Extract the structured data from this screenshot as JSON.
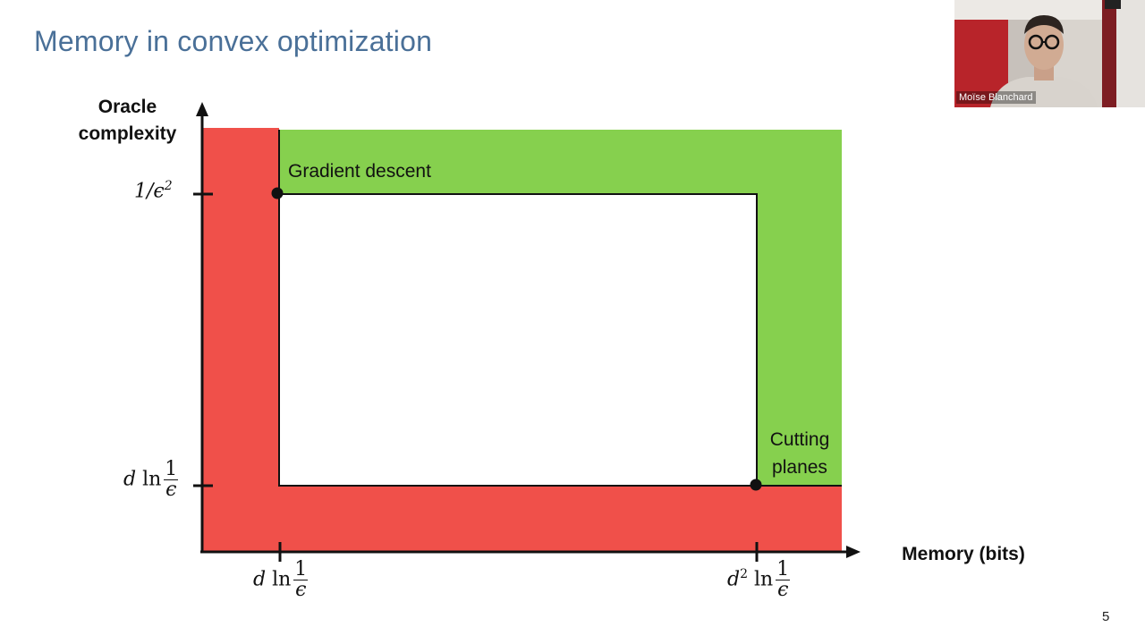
{
  "slide": {
    "title": "Memory in convex optimization",
    "page_number": "5"
  },
  "diagram": {
    "y_axis_label_line1": "Oracle",
    "y_axis_label_line2": "complexity",
    "x_axis_label": "Memory (bits)",
    "y_ticks": {
      "high": {
        "base": "1/ϵ",
        "sup": "2"
      },
      "low": {
        "prefix": "d ",
        "fn": "ln",
        "num": "1",
        "den": "ϵ"
      }
    },
    "x_ticks": {
      "left": {
        "prefix": "d ",
        "fn": "ln",
        "num": "1",
        "den": "ϵ"
      },
      "right": {
        "prefix": "d",
        "sup": "2",
        "fn": "ln",
        "num": "1",
        "den": "ϵ"
      }
    },
    "points": {
      "gradient_descent": "Gradient descent",
      "cutting_planes_line1": "Cutting",
      "cutting_planes_line2": "planes"
    },
    "colors": {
      "infeasible_region": "#f0504a",
      "feasible_region": "#86d04e",
      "axis": "#111111"
    }
  },
  "video_overlay": {
    "speaker_name": "Moïse Blanchard"
  }
}
